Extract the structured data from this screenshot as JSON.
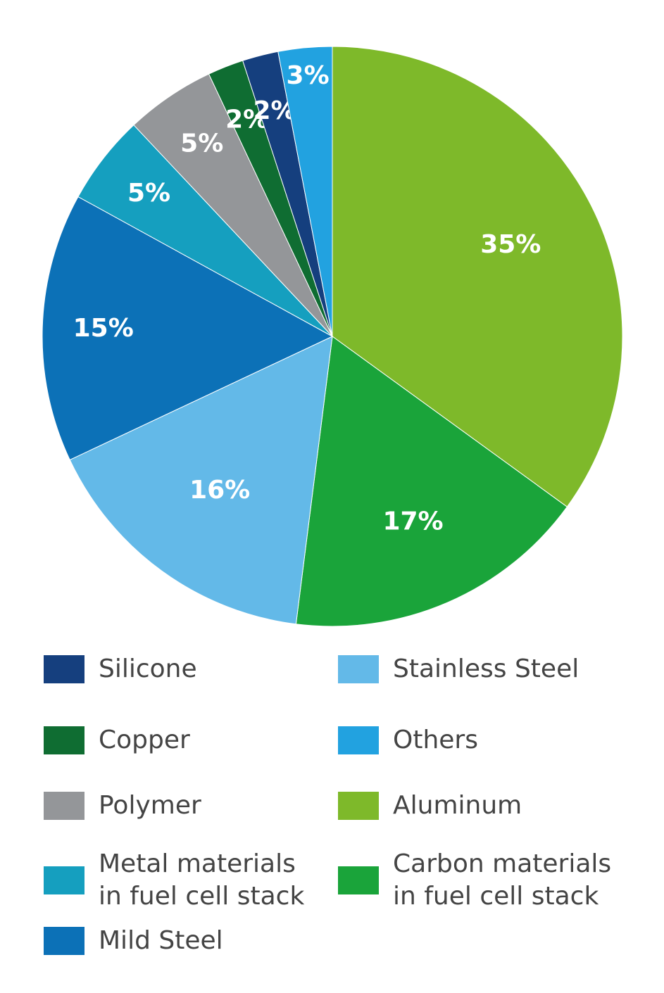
{
  "chart_data": {
    "type": "pie",
    "slices": [
      {
        "label": "Aluminum",
        "value": 35,
        "display": "35%",
        "color": "#7eb92a"
      },
      {
        "label": "Carbon materials in fuel cell stack",
        "value": 17,
        "display": "17%",
        "color": "#1aa43a"
      },
      {
        "label": "Stainless Steel",
        "value": 16,
        "display": "16%",
        "color": "#63b9e8"
      },
      {
        "label": "Mild Steel",
        "value": 15,
        "display": "15%",
        "color": "#0c71b7"
      },
      {
        "label": "Metal materials in fuel cell stack",
        "value": 5,
        "display": "5%",
        "color": "#159fbf"
      },
      {
        "label": "Polymer",
        "value": 5,
        "display": "5%",
        "color": "#949699"
      },
      {
        "label": "Copper",
        "value": 2,
        "display": "2%",
        "color": "#0f6d32"
      },
      {
        "label": "Silicone",
        "value": 2,
        "display": "2%",
        "color": "#153f7e"
      },
      {
        "label": "Others",
        "value": 3,
        "display": "3%",
        "color": "#22a2e0"
      }
    ],
    "legend": {
      "placement": "bottom",
      "entries": [
        {
          "label": "Silicone",
          "color": "#153f7e"
        },
        {
          "label": "Stainless Steel",
          "color": "#63b9e8"
        },
        {
          "label": "Copper",
          "color": "#0f6d32"
        },
        {
          "label": "Others",
          "color": "#22a2e0"
        },
        {
          "label": "Polymer",
          "color": "#949699"
        },
        {
          "label": "Aluminum",
          "color": "#7eb92a"
        },
        {
          "label": "Metal materials in fuel cell stack",
          "line1": "Metal materials",
          "line2": "in fuel cell stack",
          "color": "#159fbf"
        },
        {
          "label": "Carbon materials in fuel cell stack",
          "line1": "Carbon materials",
          "line2": "in fuel cell stack",
          "color": "#1aa43a"
        },
        {
          "label": "Mild Steel",
          "color": "#0c71b7"
        }
      ]
    }
  }
}
